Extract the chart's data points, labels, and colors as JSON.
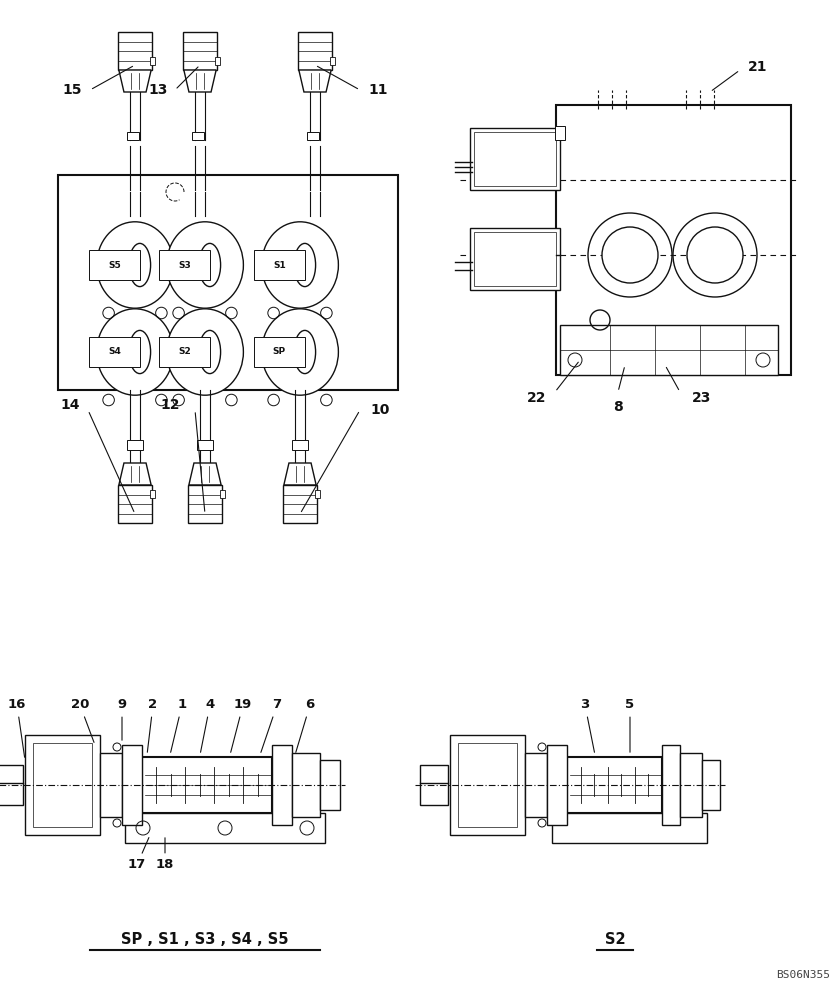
{
  "bg_color": "#ffffff",
  "line_color": "#111111",
  "fig_width": 8.4,
  "fig_height": 10.0,
  "dpi": 100,
  "watermark": "BS06N355",
  "label_sp": "SP , S1 , S3 , S4 , S5",
  "label_s2": "S2"
}
